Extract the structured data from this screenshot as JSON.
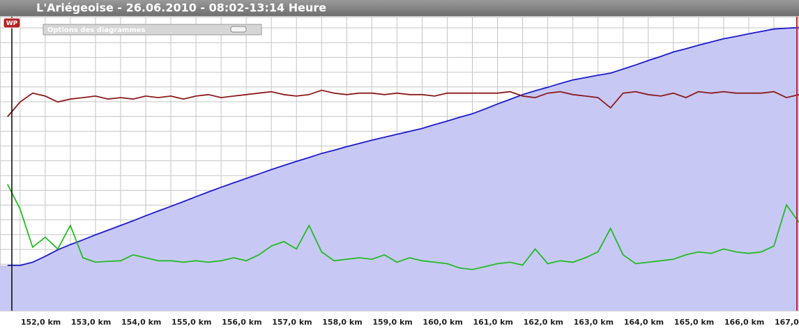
{
  "header": {
    "title": "L'Ariégeoise - 26.06.2010 - 08:02-13:14 Heure"
  },
  "ui": {
    "waypoint": "WP",
    "options_panel": "Options des diagrammes"
  },
  "chart_data": {
    "type": "line",
    "x": [
      151.75,
      152.0,
      152.25,
      152.5,
      152.75,
      153.0,
      153.25,
      153.5,
      153.75,
      154.0,
      154.25,
      154.5,
      154.75,
      155.0,
      155.25,
      155.5,
      155.75,
      156.0,
      156.25,
      156.5,
      156.75,
      157.0,
      157.25,
      157.5,
      157.75,
      158.0,
      158.25,
      158.5,
      158.75,
      159.0,
      159.25,
      159.5,
      159.75,
      160.0,
      160.25,
      160.5,
      160.75,
      161.0,
      161.25,
      161.5,
      161.75,
      162.0,
      162.25,
      162.5,
      162.75,
      163.0,
      163.25,
      163.5,
      163.75,
      164.0,
      164.25,
      164.5,
      164.75,
      165.0,
      165.25,
      165.5,
      165.75,
      166.0,
      166.25,
      166.5,
      166.75,
      167.0,
      167.25,
      167.5
    ],
    "series": [
      {
        "color": "#1a1acc",
        "fill": "#c8c8f5",
        "values": [
          15.4,
          15.4,
          16.5,
          18.5,
          20.7,
          22.5,
          24.1,
          25.8,
          27.4,
          29,
          30.6,
          32.3,
          33.9,
          35.5,
          37.1,
          38.8,
          40.4,
          42,
          43.5,
          45,
          46.5,
          48,
          49.4,
          50.8,
          52.1,
          53.5,
          54.6,
          55.8,
          56.9,
          58,
          59,
          60,
          61,
          62,
          63.3,
          64.5,
          65.8,
          67,
          68.6,
          70.3,
          71.9,
          73.5,
          74.8,
          76,
          77.3,
          78.5,
          79.3,
          80.1,
          80.8,
          82.2,
          83.6,
          85.1,
          86.5,
          88,
          89.1,
          90.3,
          91.4,
          92.5,
          93.3,
          94.2,
          95,
          95.8,
          96.1,
          96.3
        ]
      },
      {
        "color": "#8b1a1a",
        "values": [
          66,
          71,
          74,
          73,
          71,
          72,
          72.5,
          73,
          72,
          72.5,
          72,
          73,
          72.5,
          73,
          72,
          73,
          73.5,
          72.5,
          73,
          73.5,
          74,
          74.5,
          73.5,
          73,
          73.5,
          75,
          74,
          73.5,
          74,
          74,
          73.5,
          74,
          73.5,
          73.5,
          73,
          74,
          74,
          74,
          74,
          74,
          74.5,
          73,
          72.5,
          74,
          74.5,
          73.5,
          73,
          72.5,
          69,
          74,
          74.5,
          73.5,
          73,
          74,
          72.5,
          74.5,
          74,
          74.5,
          74,
          74,
          74,
          74.5,
          72.5,
          73.5
        ]
      },
      {
        "color": "#22bb22",
        "values": [
          43,
          34.6,
          21.6,
          25,
          21,
          29,
          18,
          16.5,
          16.8,
          17,
          19,
          18,
          17,
          17,
          16.5,
          17,
          16.5,
          17,
          18,
          17,
          19,
          22,
          23.5,
          21,
          29,
          20,
          17,
          17.5,
          18,
          17.5,
          19,
          16.5,
          18,
          17,
          16.5,
          16,
          14.5,
          14,
          15,
          16,
          16.5,
          15.5,
          21,
          16,
          17,
          16.5,
          18,
          20,
          28,
          19,
          16,
          16.5,
          17,
          17.5,
          19,
          20,
          19.5,
          21,
          20,
          19.5,
          20,
          22,
          36,
          30
        ]
      }
    ],
    "xlim": [
      151.6,
      167.5
    ],
    "ylim": [
      0,
      100
    ],
    "xticks": [
      {
        "value": 152,
        "label": "152,0 km"
      },
      {
        "value": 153,
        "label": "153,0 km"
      },
      {
        "value": 154,
        "label": "154,0 km"
      },
      {
        "value": 155,
        "label": "155,0 km"
      },
      {
        "value": 156,
        "label": "156,0 km"
      },
      {
        "value": 157,
        "label": "157,0 km"
      },
      {
        "value": 158,
        "label": "158,0 km"
      },
      {
        "value": 159,
        "label": "159,0 km"
      },
      {
        "value": 160,
        "label": "160,0 km"
      },
      {
        "value": 161,
        "label": "161,0 km"
      },
      {
        "value": 162,
        "label": "162,0 km"
      },
      {
        "value": 163,
        "label": "163,0 km"
      },
      {
        "value": 164,
        "label": "164,0 km"
      },
      {
        "value": 165,
        "label": "165,0 km"
      },
      {
        "value": 166,
        "label": "166,0 km"
      },
      {
        "value": 167,
        "label": "167,0 km"
      }
    ],
    "grid": true
  }
}
